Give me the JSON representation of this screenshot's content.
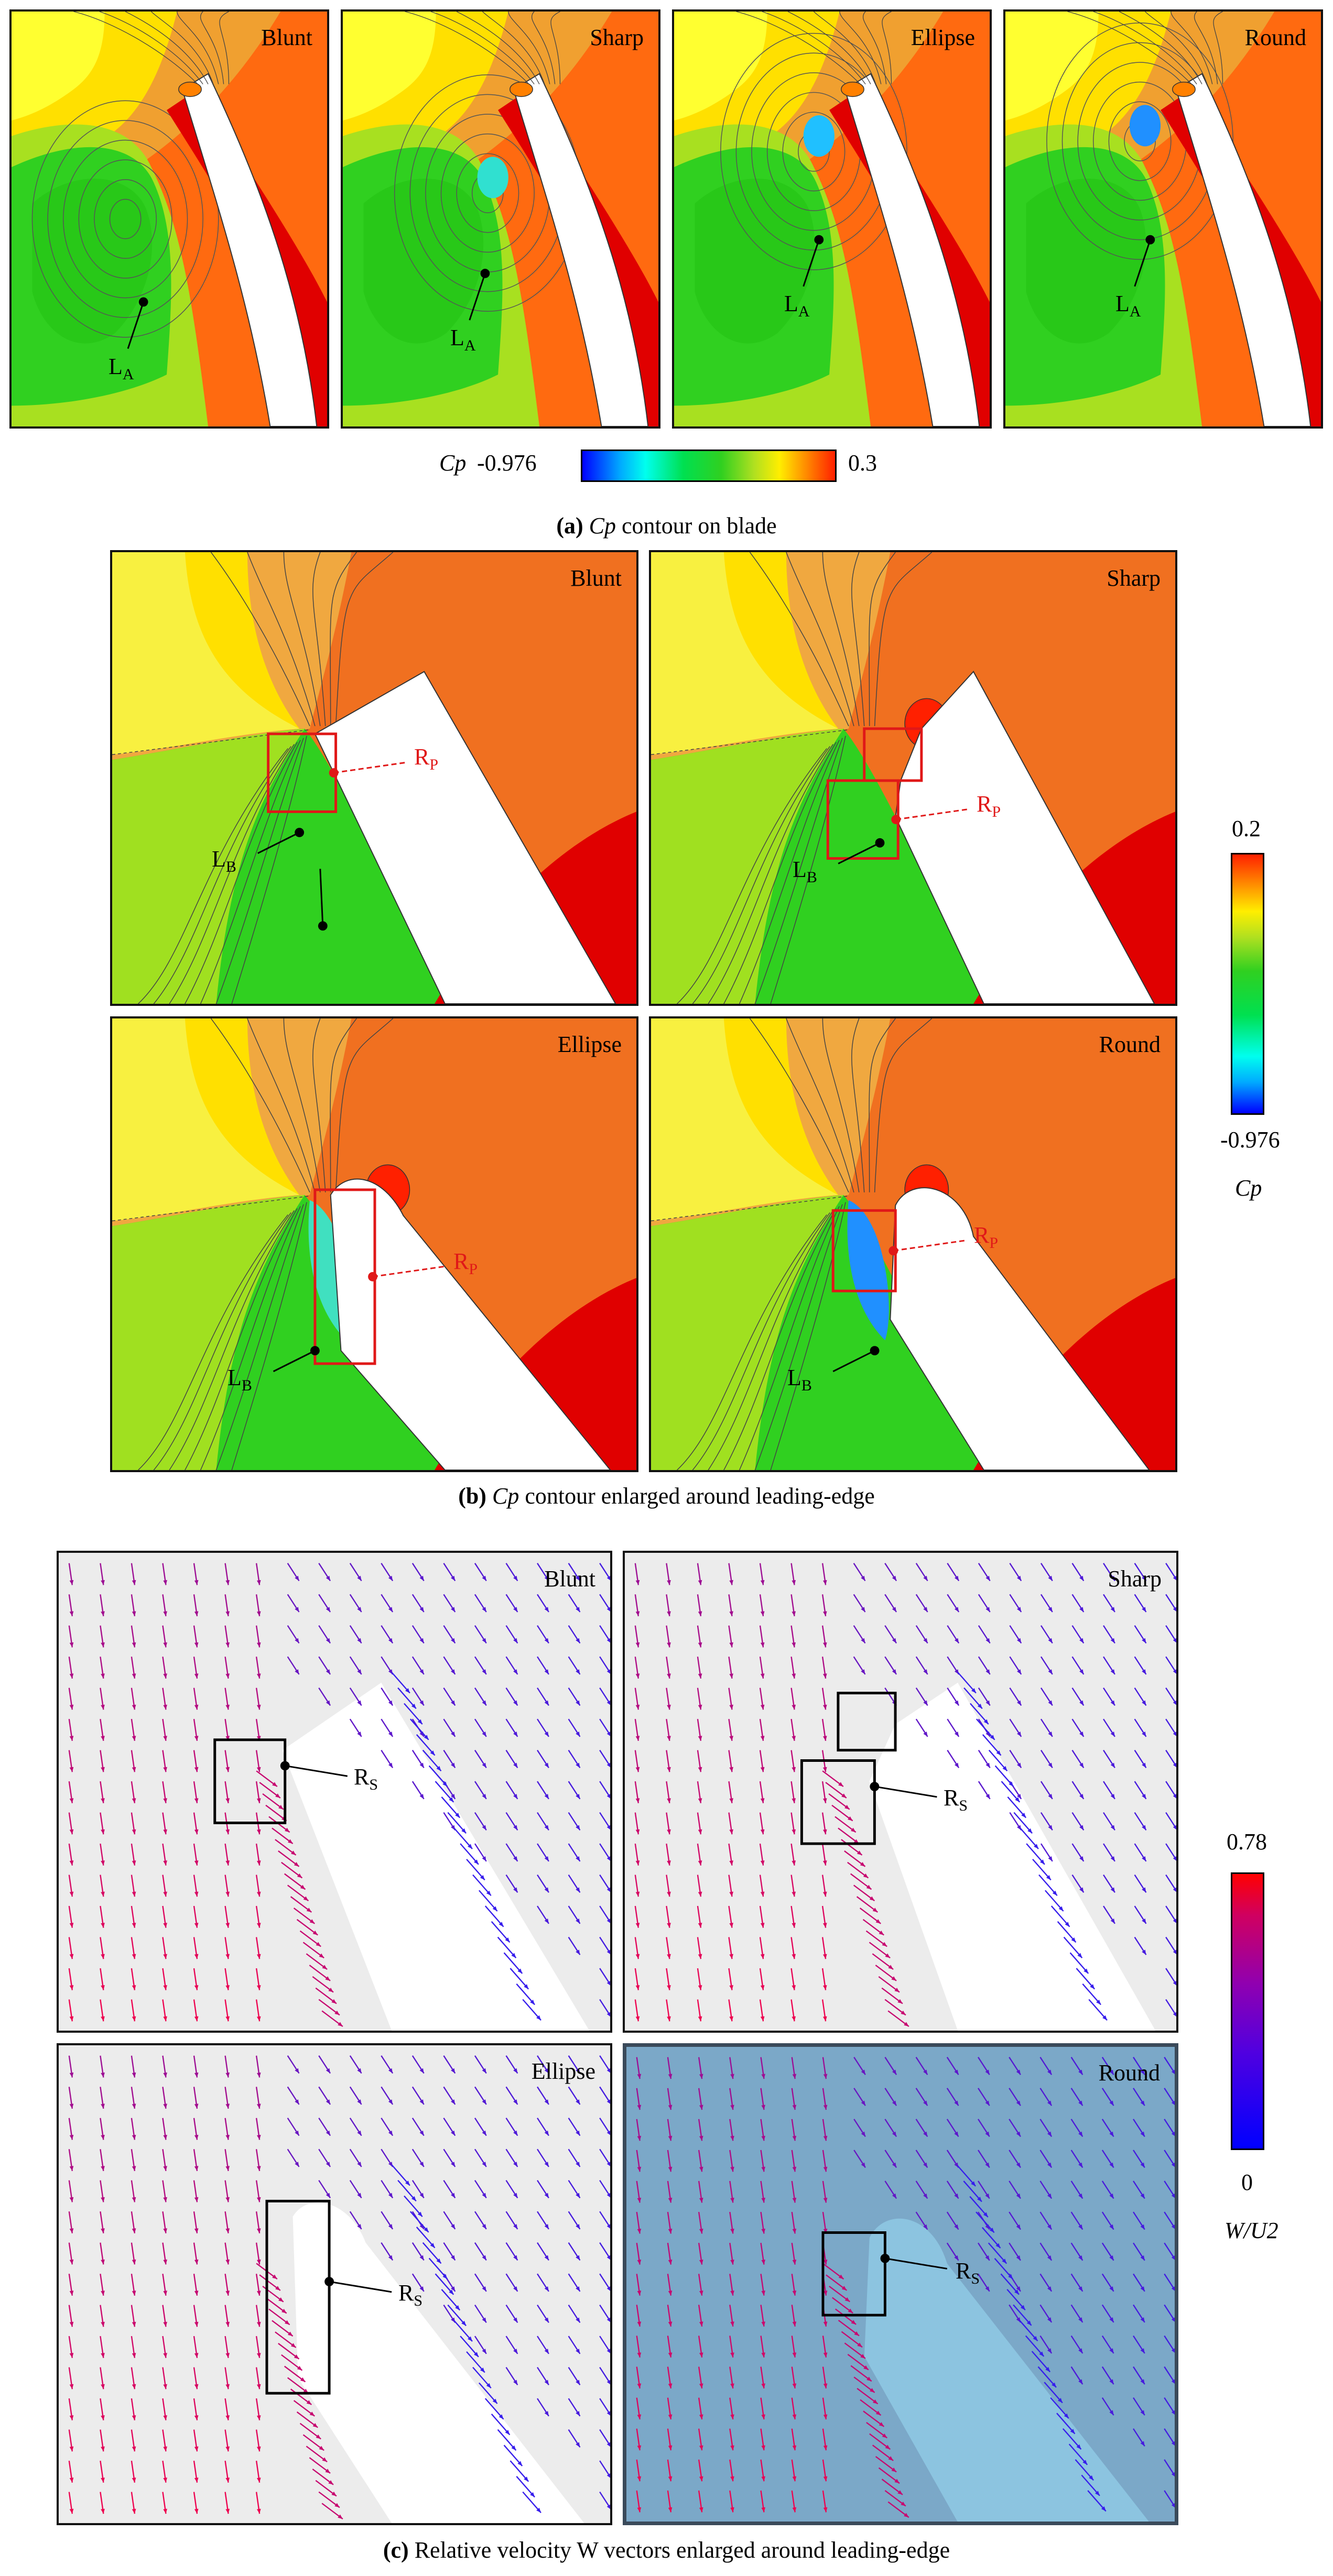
{
  "section_a": {
    "panels": [
      {
        "title": "Blunt",
        "marker": "L",
        "marker_sub": "A"
      },
      {
        "title": "Sharp",
        "marker": "L",
        "marker_sub": "A"
      },
      {
        "title": "Ellipse",
        "marker": "L",
        "marker_sub": "A"
      },
      {
        "title": "Round",
        "marker": "L",
        "marker_sub": "A"
      }
    ],
    "colorbar": {
      "label": "Cp",
      "min": "-0.976",
      "max": "0.3"
    },
    "caption_prefix": "(a)",
    "caption_var": "Cp",
    "caption_text": "contour on blade"
  },
  "section_b": {
    "panels": [
      {
        "title": "Blunt",
        "marker": "L",
        "marker_sub": "B",
        "region": "R",
        "region_sub": "P"
      },
      {
        "title": "Sharp",
        "marker": "L",
        "marker_sub": "B",
        "region": "R",
        "region_sub": "P"
      },
      {
        "title": "Ellipse",
        "marker": "L",
        "marker_sub": "B",
        "region": "R",
        "region_sub": "P"
      },
      {
        "title": "Round",
        "marker": "L",
        "marker_sub": "B",
        "region": "R",
        "region_sub": "P"
      }
    ],
    "colorbar": {
      "label": "Cp",
      "min": "-0.976",
      "max": "0.2"
    },
    "caption_prefix": "(b)",
    "caption_var": "Cp",
    "caption_text": "contour enlarged around leading-edge"
  },
  "section_c": {
    "panels": [
      {
        "title": "Blunt",
        "region": "R",
        "region_sub": "S"
      },
      {
        "title": "Sharp",
        "region": "R",
        "region_sub": "S"
      },
      {
        "title": "Ellipse",
        "region": "R",
        "region_sub": "S"
      },
      {
        "title": "Round",
        "region": "R",
        "region_sub": "S"
      }
    ],
    "colorbar": {
      "label": "W/U2",
      "min": "0",
      "max": "0.78"
    },
    "caption_prefix": "(c)",
    "caption_text": "Relative velocity W vectors enlarged around leading-edge"
  },
  "colors": {
    "contour_red": "#ff2000",
    "contour_orange": "#f08020",
    "contour_yellow": "#ffee00",
    "contour_green": "#30d020",
    "vector_red": "#ff0040",
    "vector_blue": "#2020ff",
    "highlight_red": "#e01818"
  }
}
